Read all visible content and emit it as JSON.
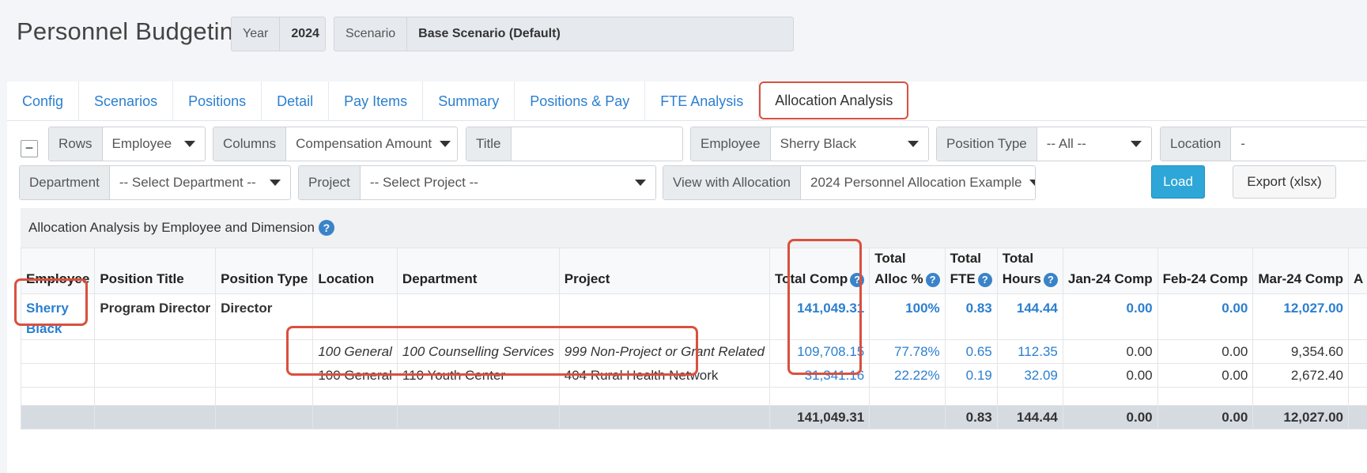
{
  "header": {
    "title": "Personnel Budgeting",
    "year_label": "Year",
    "year_value": "2024",
    "scenario_label": "Scenario",
    "scenario_value": "Base Scenario (Default)"
  },
  "tabs": [
    {
      "label": "Config"
    },
    {
      "label": "Scenarios"
    },
    {
      "label": "Positions"
    },
    {
      "label": "Detail"
    },
    {
      "label": "Pay Items"
    },
    {
      "label": "Summary"
    },
    {
      "label": "Positions & Pay"
    },
    {
      "label": "FTE Analysis"
    },
    {
      "label": "Allocation Analysis",
      "active": true
    }
  ],
  "filters": {
    "collapse": "−",
    "rows_label": "Rows",
    "rows_value": "Employee",
    "columns_label": "Columns",
    "columns_value": "Compensation Amount",
    "title_label": "Title",
    "title_value": "",
    "employee_label": "Employee",
    "employee_value": "Sherry Black",
    "position_type_label": "Position Type",
    "position_type_value": "-- All --",
    "location_label": "Location",
    "location_value": "-",
    "department_label": "Department",
    "department_value": "-- Select Department --",
    "project_label": "Project",
    "project_value": "-- Select Project --",
    "allocation_label": "View with Allocation",
    "allocation_value": "2024 Personnel Allocation Example",
    "load_button": "Load",
    "export_button": "Export (xlsx)"
  },
  "report": {
    "caption": "Allocation Analysis by Employee and Dimension",
    "help": "?",
    "columns": {
      "employee": "Employee",
      "position_title": "Position Title",
      "position_type": "Position Type",
      "location": "Location",
      "department": "Department",
      "project": "Project",
      "total_comp": "Total Comp",
      "total_alloc_1": "Total",
      "total_alloc_2": "Alloc %",
      "total_fte_1": "Total",
      "total_fte_2": "FTE",
      "total_hours_1": "Total",
      "total_hours_2": "Hours",
      "jan": "Jan-24 Comp",
      "feb": "Feb-24 Comp",
      "mar": "Mar-24 Comp",
      "next": "A"
    },
    "employee_row": {
      "employee_line1": "Sherry",
      "employee_line2": "Black",
      "position_title": "Program Director",
      "position_type": "Director",
      "total_comp": "141,049.31",
      "alloc": "100%",
      "fte": "0.83",
      "hours": "144.44",
      "jan": "0.00",
      "feb": "0.00",
      "mar": "12,027.00"
    },
    "allocation_rows": [
      {
        "location": "100 General",
        "department": "100 Counselling Services",
        "project": "999 Non-Project or Grant Related",
        "total_comp": "109,708.15",
        "alloc": "77.78%",
        "fte": "0.65",
        "hours": "112.35",
        "jan": "0.00",
        "feb": "0.00",
        "mar": "9,354.60"
      },
      {
        "location": "100 General",
        "department": "110 Youth Center",
        "project": "404 Rural Health Network",
        "total_comp": "31,341.16",
        "alloc": "22.22%",
        "fte": "0.19",
        "hours": "32.09",
        "jan": "0.00",
        "feb": "0.00",
        "mar": "2,672.40"
      }
    ],
    "total_row": {
      "total_comp": "141,049.31",
      "fte": "0.83",
      "hours": "144.44",
      "jan": "0.00",
      "feb": "0.00",
      "mar": "12,027.00"
    }
  },
  "colors": {
    "link": "#2b7fd0",
    "highlight": "#d9503f",
    "load_button": "#2ea6d8",
    "total_row": "#d6dbe2"
  }
}
